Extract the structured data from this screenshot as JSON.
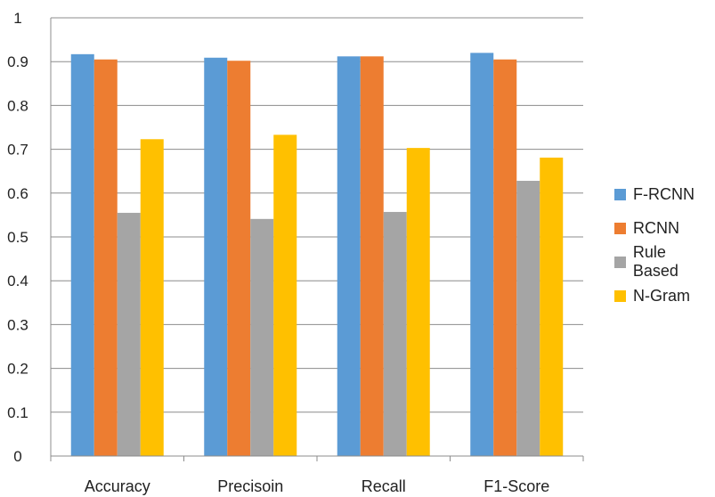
{
  "chart_data": {
    "type": "bar",
    "title": "",
    "xlabel": "",
    "ylabel": "",
    "categories": [
      "Accuracy",
      "Precisoin",
      "Recall",
      "F1-Score"
    ],
    "ylim": [
      0,
      1
    ],
    "yticks": [
      "0",
      "0.1",
      "0.2",
      "0.3",
      "0.4",
      "0.5",
      "0.6",
      "0.7",
      "0.8",
      "0.9",
      "1"
    ],
    "grid": true,
    "legend_position": "right",
    "series": [
      {
        "name": "F-RCNN",
        "color": "#5B9BD5",
        "values": [
          0.917,
          0.909,
          0.912,
          0.92
        ]
      },
      {
        "name": "RCNN",
        "color": "#ED7D31",
        "values": [
          0.905,
          0.902,
          0.912,
          0.905
        ]
      },
      {
        "name": "Rule Based",
        "color": "#A5A5A5",
        "values": [
          0.555,
          0.541,
          0.557,
          0.628
        ]
      },
      {
        "name": "N-Gram",
        "color": "#FFC000",
        "values": [
          0.723,
          0.733,
          0.703,
          0.681
        ]
      }
    ]
  }
}
